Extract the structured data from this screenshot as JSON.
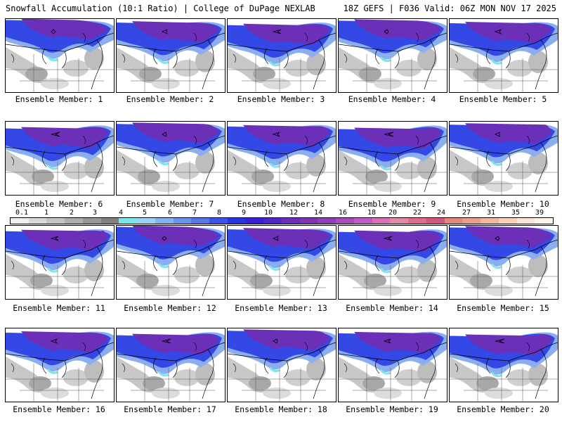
{
  "header": {
    "left": "Snowfall Accumulation (10:1 Ratio) | College of DuPage NEXLAB",
    "right": "18Z GEFS | F036 Valid: 06Z MON NOV 17 2025"
  },
  "members": [
    {
      "label": "Ensemble Member: 1"
    },
    {
      "label": "Ensemble Member: 2"
    },
    {
      "label": "Ensemble Member: 3"
    },
    {
      "label": "Ensemble Member: 4"
    },
    {
      "label": "Ensemble Member: 5"
    },
    {
      "label": "Ensemble Member: 6"
    },
    {
      "label": "Ensemble Member: 7"
    },
    {
      "label": "Ensemble Member: 8"
    },
    {
      "label": "Ensemble Member: 9"
    },
    {
      "label": "Ensemble Member: 10"
    },
    {
      "label": "Ensemble Member: 11"
    },
    {
      "label": "Ensemble Member: 12"
    },
    {
      "label": "Ensemble Member: 13"
    },
    {
      "label": "Ensemble Member: 14"
    },
    {
      "label": "Ensemble Member: 15"
    },
    {
      "label": "Ensemble Member: 16"
    },
    {
      "label": "Ensemble Member: 17"
    },
    {
      "label": "Ensemble Member: 18"
    },
    {
      "label": "Ensemble Member: 19"
    },
    {
      "label": "Ensemble Member: 20"
    }
  ],
  "colorscale": {
    "labels": [
      "0.1",
      "1",
      "2",
      "3",
      "4",
      "5",
      "6",
      "7",
      "8",
      "9",
      "10",
      "12",
      "14",
      "16",
      "18",
      "20",
      "22",
      "24",
      "27",
      "31",
      "35",
      "39"
    ],
    "colors": [
      "#eeeeee",
      "#d9d9d9",
      "#c4c4c4",
      "#adadad",
      "#979797",
      "#808080",
      "#7fe6e6",
      "#9ad2f5",
      "#86b2f0",
      "#6d92ec",
      "#5876e8",
      "#3d55e6",
      "#2a35e0",
      "#3a1fd6",
      "#5326c8",
      "#6a2eb8",
      "#7d35b0",
      "#9040b6",
      "#a84cbc",
      "#c25ac4",
      "#d870b8",
      "#e08aa8",
      "#dc6e8c",
      "#d05878",
      "#e0887a",
      "#e8a08c",
      "#f0b8a0",
      "#f7d2b8",
      "#fbe6d4",
      "#fff6ea"
    ]
  },
  "colors": {
    "purple": "#6b2fb8",
    "blue": "#3348e4",
    "lightblue": "#8aaef0",
    "cyan": "#7fe6e6",
    "gray": "#9a9a9a"
  }
}
